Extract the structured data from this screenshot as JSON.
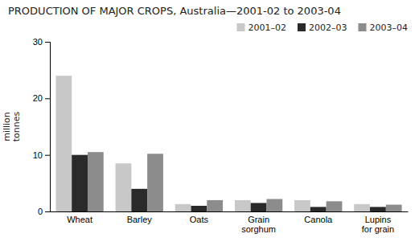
{
  "chart_data": {
    "type": "bar",
    "title": "PRODUCTION OF MAJOR CROPS, Australia—2001-02 to 2003-04",
    "ylabel": "million\ntonnes",
    "categories": [
      "Wheat",
      "Barley",
      "Oats",
      "Grain\nsorghum",
      "Canola",
      "Lupins\nfor grain"
    ],
    "series": [
      {
        "name": "2001–02",
        "color": "#c8c8c8",
        "values": [
          24.0,
          8.5,
          1.3,
          2.0,
          2.0,
          1.3
        ]
      },
      {
        "name": "2002–03",
        "color": "#2a2a2a",
        "values": [
          10.0,
          4.0,
          1.0,
          1.5,
          0.8,
          0.8
        ]
      },
      {
        "name": "2003–04",
        "color": "#8c8c8c",
        "values": [
          10.5,
          10.2,
          2.0,
          2.2,
          1.8,
          1.2
        ]
      }
    ],
    "ylim": [
      0,
      30
    ],
    "yticks": [
      0,
      10,
      20,
      30
    ],
    "grid": false,
    "legend": "upper right"
  }
}
